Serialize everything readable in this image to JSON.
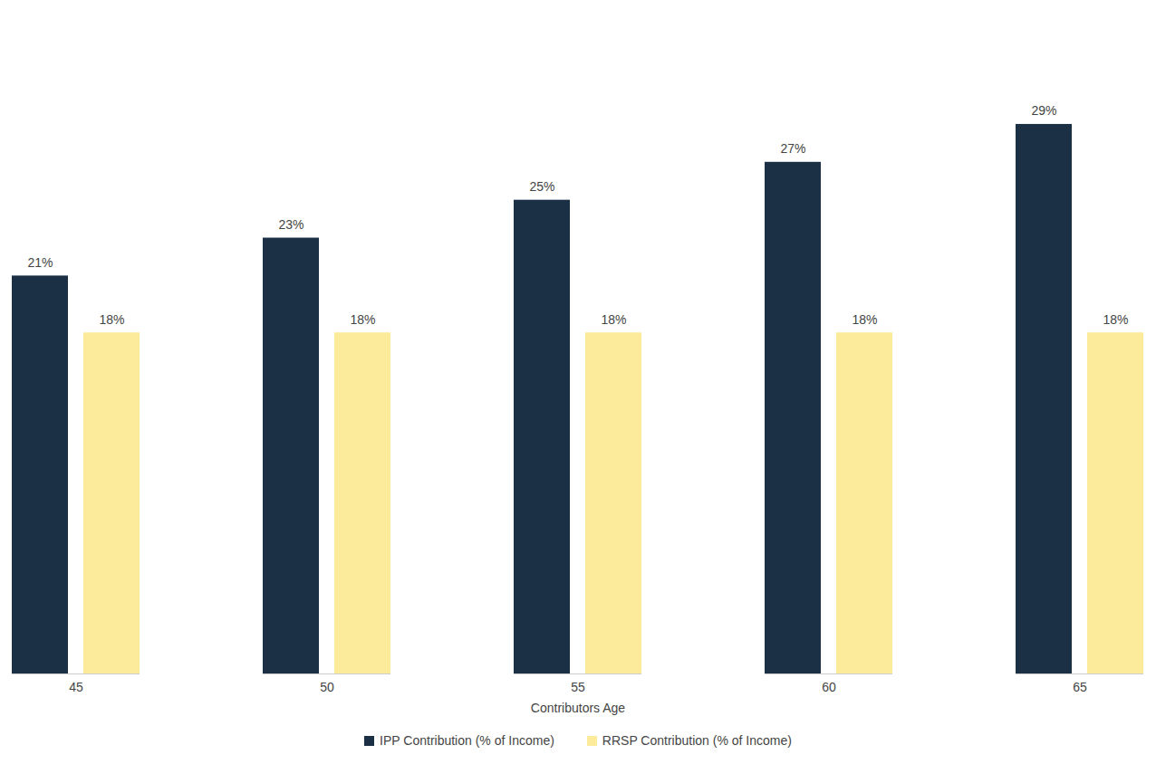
{
  "chart_data": {
    "type": "bar",
    "x_label": "Contributors Age",
    "categories": [
      45,
      50,
      55,
      60,
      65
    ],
    "series": [
      {
        "name": "IPP Contribution (% of Income)",
        "color": "#1b3045",
        "values": [
          21,
          23,
          25,
          27,
          29
        ],
        "value_labels": [
          "21%",
          "23%",
          "25%",
          "27%",
          "29%"
        ]
      },
      {
        "name": "RRSP Contribution (% of Income)",
        "color": "#fdeb9c",
        "values": [
          18,
          18,
          18,
          18,
          18
        ],
        "value_labels": [
          "18%",
          "18%",
          "18%",
          "18%",
          "18%"
        ]
      }
    ],
    "ylim": [
      0,
      30
    ],
    "data_labels": true,
    "tick_labels": "x",
    "grid": false,
    "legend": "bottom"
  }
}
